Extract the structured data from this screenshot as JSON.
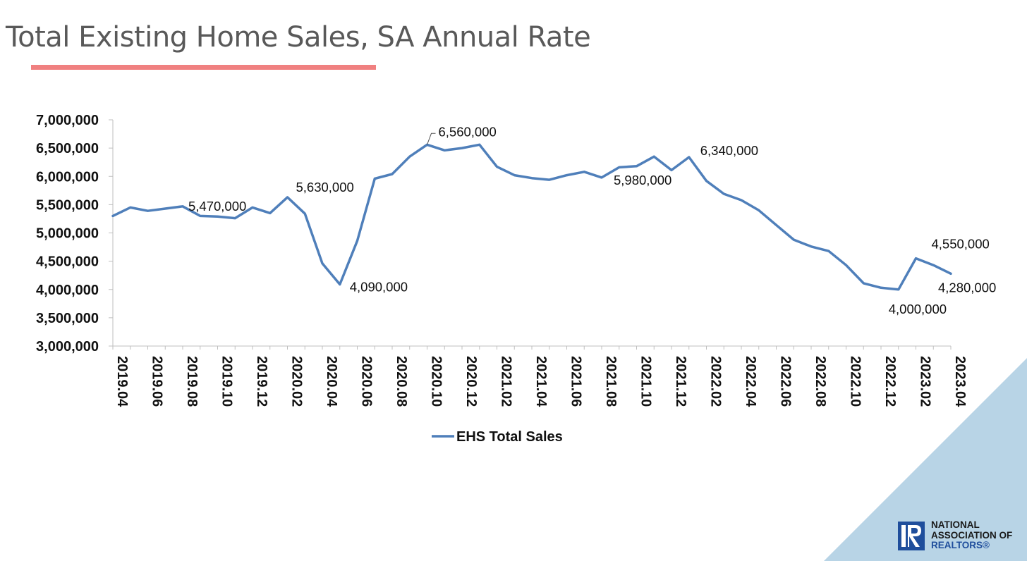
{
  "page": {
    "title": "Total Existing Home Sales, SA Annual Rate"
  },
  "logo": {
    "line1": "NATIONAL",
    "line2": "ASSOCIATION OF",
    "line3": "REALTORS®"
  },
  "colors": {
    "series": "#4f7fba",
    "underline": "#f08080",
    "corner": "#b8d4e6",
    "brand": "#1f4e9c"
  },
  "chart_data": {
    "type": "line",
    "title": "",
    "xlabel": "",
    "ylabel": "",
    "ylim": [
      3000000,
      7000000
    ],
    "yticks": [
      "3,000,000",
      "3,500,000",
      "4,000,000",
      "4,500,000",
      "5,000,000",
      "5,500,000",
      "6,000,000",
      "6,500,000",
      "7,000,000"
    ],
    "ytick_values": [
      3000000,
      3500000,
      4000000,
      4500000,
      5000000,
      5500000,
      6000000,
      6500000,
      7000000
    ],
    "xtick_labels": [
      "2019.04",
      "2019.06",
      "2019.08",
      "2019.10",
      "2019.12",
      "2020.02",
      "2020.04",
      "2020.06",
      "2020.08",
      "2020.10",
      "2020.12",
      "2021.02",
      "2021.04",
      "2021.06",
      "2021.08",
      "2021.10",
      "2021.12",
      "2022.02",
      "2022.04",
      "2022.06",
      "2022.08",
      "2022.10",
      "2022.12",
      "2023.02",
      "2023.04"
    ],
    "legend": "bottom",
    "grid": false,
    "series": [
      {
        "name": "EHS Total Sales",
        "color": "#4f7fba",
        "x": [
          "2019.04",
          "2019.05",
          "2019.06",
          "2019.07",
          "2019.08",
          "2019.09",
          "2019.10",
          "2019.11",
          "2019.12",
          "2020.01",
          "2020.02",
          "2020.03",
          "2020.04",
          "2020.05",
          "2020.06",
          "2020.07",
          "2020.08",
          "2020.09",
          "2020.10",
          "2020.11",
          "2020.12",
          "2021.01",
          "2021.02",
          "2021.03",
          "2021.04",
          "2021.05",
          "2021.06",
          "2021.07",
          "2021.08",
          "2021.09",
          "2021.10",
          "2021.11",
          "2021.12",
          "2022.01",
          "2022.02",
          "2022.03",
          "2022.04",
          "2022.05",
          "2022.06",
          "2022.07",
          "2022.08",
          "2022.09",
          "2022.10",
          "2022.11",
          "2022.12",
          "2023.01",
          "2023.02",
          "2023.03",
          "2023.04"
        ],
        "values": [
          5300000,
          5450000,
          5390000,
          5430000,
          5470000,
          5300000,
          5290000,
          5260000,
          5450000,
          5350000,
          5630000,
          5340000,
          4460000,
          4090000,
          4860000,
          5960000,
          6040000,
          6350000,
          6560000,
          6460000,
          6500000,
          6560000,
          6170000,
          6020000,
          5970000,
          5940000,
          6020000,
          6080000,
          5980000,
          6160000,
          6180000,
          6350000,
          6110000,
          6340000,
          5920000,
          5690000,
          5580000,
          5400000,
          5140000,
          4880000,
          4760000,
          4680000,
          4430000,
          4110000,
          4030000,
          4000000,
          4550000,
          4430000,
          4280000
        ]
      }
    ],
    "annotations": [
      {
        "label": "5,470,000",
        "index": 4
      },
      {
        "label": "5,630,000",
        "index": 10
      },
      {
        "label": "4,090,000",
        "index": 13
      },
      {
        "label": "6,560,000",
        "index": 18
      },
      {
        "label": "5,980,000",
        "index": 28
      },
      {
        "label": "6,340,000",
        "index": 33
      },
      {
        "label": "4,000,000",
        "index": 45
      },
      {
        "label": "4,550,000",
        "index": 46
      },
      {
        "label": "4,280,000",
        "index": 48
      }
    ]
  }
}
